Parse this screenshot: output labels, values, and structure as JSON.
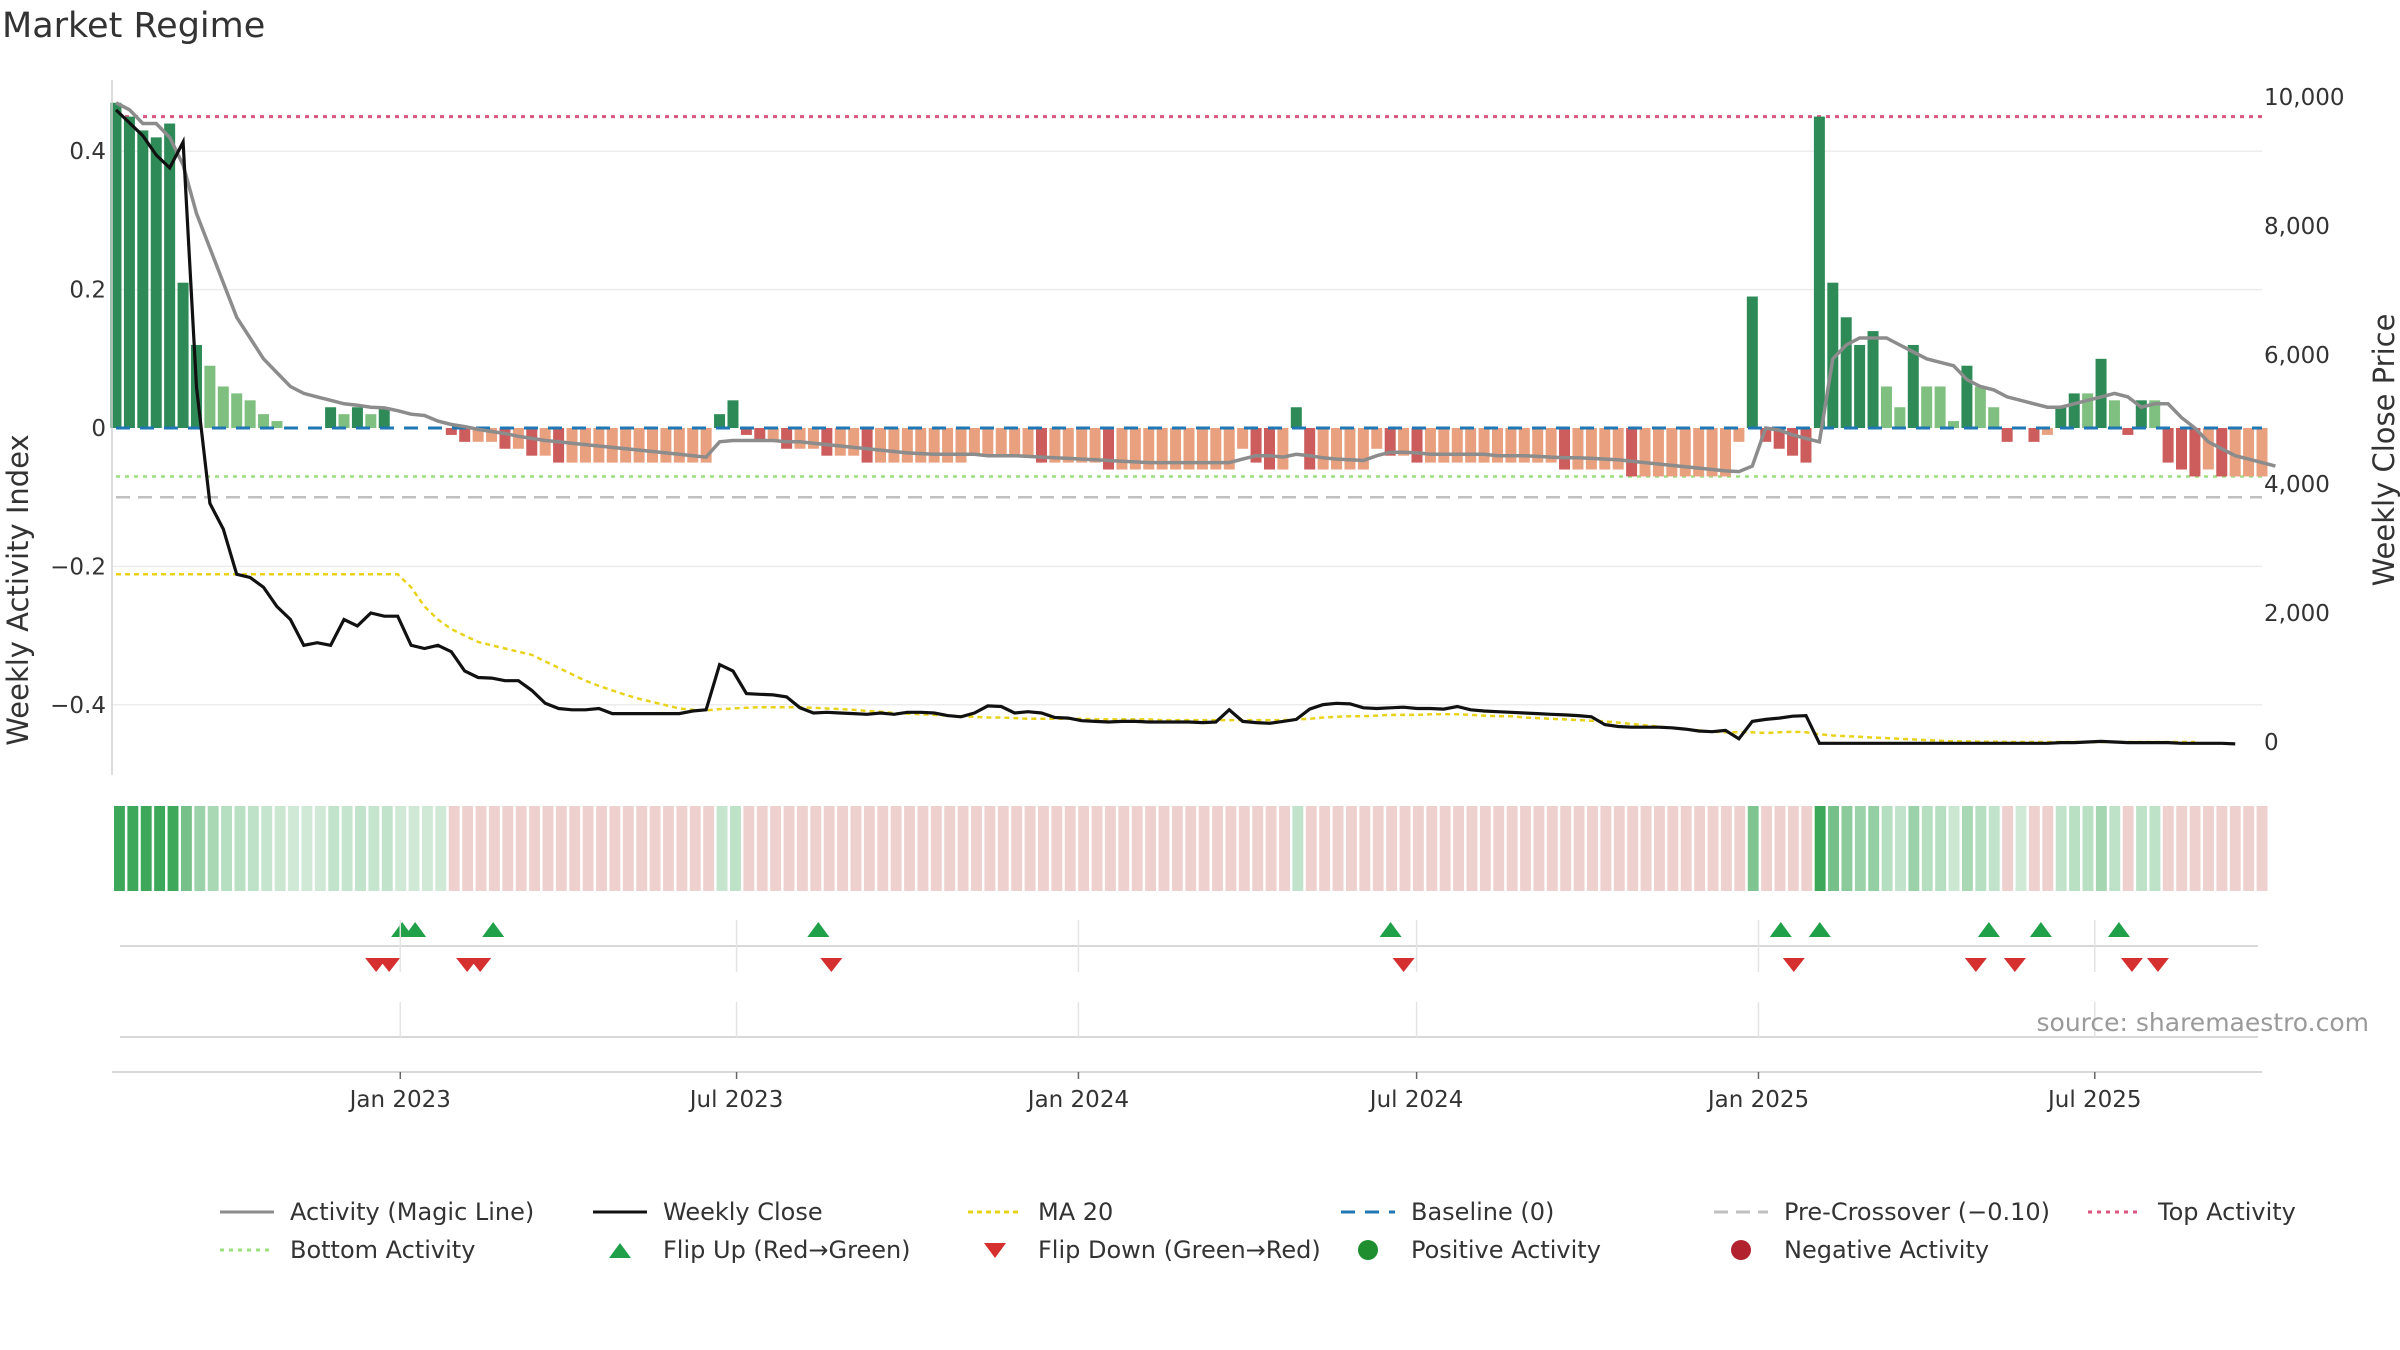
{
  "title": "Market Regime",
  "source": "source: sharemaestro.com",
  "colors": {
    "green_dark": "#2e8b57",
    "green_light": "#7fbf7f",
    "red_dark": "#cd5c5c",
    "red_light": "#e9a07f",
    "magic": "#8c8c8c",
    "close": "#111111",
    "ma": "#e8d31a",
    "baseline": "#1f77b4",
    "precross": "#c0c0c0",
    "top": "#d9577e",
    "bottom": "#9be07f",
    "flip_up": "#21a04a",
    "flip_down": "#d62f2f"
  },
  "legend": [
    {
      "key": "magic",
      "label": "Activity (Magic Line)"
    },
    {
      "key": "close",
      "label": "Weekly Close"
    },
    {
      "key": "ma",
      "label": "MA 20"
    },
    {
      "key": "baseline",
      "label": "Baseline (0)"
    },
    {
      "key": "precross",
      "label": "Pre-Crossover (−0.10)"
    },
    {
      "key": "top",
      "label": "Top Activity"
    },
    {
      "key": "bottom",
      "label": "Bottom Activity"
    },
    {
      "key": "flip_up",
      "label": "Flip Up (Red→Green)"
    },
    {
      "key": "flip_down",
      "label": "Flip Down (Green→Red)"
    },
    {
      "key": "pos",
      "label": "Positive Activity"
    },
    {
      "key": "neg",
      "label": "Negative Activity"
    }
  ],
  "chart_data": {
    "type": "bar",
    "x_start": "2022-08-01",
    "x_end": "2025-09-29",
    "x_freq": "weekly",
    "xticks": [
      "Jan 2023",
      "Jul 2023",
      "Jan 2024",
      "Jul 2024",
      "Jan 2025",
      "Jul 2025"
    ],
    "y_left_label": "Weekly Activity Index",
    "y_left_ticks": [
      "0.4",
      "0.2",
      "0",
      "−0.2",
      "−0.4"
    ],
    "y_left_lim": [
      -0.45,
      0.47
    ],
    "y_right_label": "Weekly Close Price",
    "y_right_ticks": [
      "10,000",
      "8,000",
      "6,000",
      "4,000",
      "2,000",
      "0"
    ],
    "y_right_lim": [
      0,
      10000
    ],
    "reference_lines": {
      "top_activity": 0.45,
      "bottom_activity": -0.07,
      "pre_crossover": -0.1,
      "baseline": 0
    },
    "activity": [
      0.47,
      0.45,
      0.43,
      0.42,
      0.44,
      0.21,
      0.12,
      0.09,
      0.06,
      0.05,
      0.04,
      0.02,
      0.01,
      0,
      0,
      0,
      0.03,
      0.02,
      0.03,
      0.02,
      0.03,
      0,
      0,
      0,
      0,
      -0.01,
      -0.02,
      -0.02,
      -0.02,
      -0.03,
      -0.03,
      -0.04,
      -0.04,
      -0.05,
      -0.05,
      -0.05,
      -0.05,
      -0.05,
      -0.05,
      -0.05,
      -0.05,
      -0.05,
      -0.05,
      -0.05,
      -0.05,
      0.02,
      0.04,
      -0.01,
      -0.02,
      -0.02,
      -0.03,
      -0.03,
      -0.03,
      -0.04,
      -0.04,
      -0.04,
      -0.05,
      -0.05,
      -0.05,
      -0.05,
      -0.05,
      -0.05,
      -0.05,
      -0.05,
      -0.04,
      -0.04,
      -0.04,
      -0.04,
      -0.04,
      -0.05,
      -0.05,
      -0.05,
      -0.05,
      -0.05,
      -0.06,
      -0.06,
      -0.06,
      -0.06,
      -0.06,
      -0.06,
      -0.06,
      -0.06,
      -0.06,
      -0.06,
      -0.03,
      -0.05,
      -0.06,
      -0.06,
      0.03,
      -0.06,
      -0.06,
      -0.06,
      -0.06,
      -0.06,
      -0.03,
      -0.04,
      -0.04,
      -0.05,
      -0.05,
      -0.05,
      -0.05,
      -0.05,
      -0.05,
      -0.05,
      -0.05,
      -0.05,
      -0.05,
      -0.05,
      -0.06,
      -0.06,
      -0.06,
      -0.06,
      -0.06,
      -0.07,
      -0.07,
      -0.07,
      -0.07,
      -0.07,
      -0.07,
      -0.07,
      -0.07,
      -0.02,
      0.19,
      -0.02,
      -0.03,
      -0.04,
      -0.05,
      0.45,
      0.21,
      0.16,
      0.12,
      0.14,
      0.06,
      0.03,
      0.12,
      0.06,
      0.06,
      0.01,
      0.09,
      0.06,
      0.03,
      -0.02,
      0,
      -0.02,
      -0.01,
      0.03,
      0.05,
      0.05,
      0.1,
      0.04,
      -0.01,
      0.04,
      0.04,
      -0.05,
      -0.06,
      -0.07,
      -0.06,
      -0.07,
      -0.07,
      -0.07,
      -0.07
    ],
    "magic_line": [
      0.47,
      0.46,
      0.44,
      0.44,
      0.42,
      0.38,
      0.31,
      0.26,
      0.21,
      0.16,
      0.13,
      0.1,
      0.08,
      0.06,
      0.05,
      0.045,
      0.04,
      0.035,
      0.033,
      0.03,
      0.029,
      0.025,
      0.02,
      0.018,
      0.01,
      0.005,
      0.002,
      -0.002,
      -0.005,
      -0.008,
      -0.012,
      -0.015,
      -0.018,
      -0.02,
      -0.022,
      -0.024,
      -0.026,
      -0.028,
      -0.03,
      -0.032,
      -0.034,
      -0.036,
      -0.038,
      -0.04,
      -0.042,
      -0.02,
      -0.018,
      -0.018,
      -0.018,
      -0.018,
      -0.02,
      -0.02,
      -0.022,
      -0.024,
      -0.026,
      -0.028,
      -0.03,
      -0.032,
      -0.034,
      -0.036,
      -0.037,
      -0.038,
      -0.038,
      -0.038,
      -0.038,
      -0.04,
      -0.04,
      -0.04,
      -0.041,
      -0.042,
      -0.043,
      -0.044,
      -0.045,
      -0.046,
      -0.047,
      -0.048,
      -0.049,
      -0.05,
      -0.05,
      -0.05,
      -0.05,
      -0.05,
      -0.05,
      -0.05,
      -0.045,
      -0.04,
      -0.04,
      -0.042,
      -0.038,
      -0.04,
      -0.043,
      -0.045,
      -0.046,
      -0.047,
      -0.04,
      -0.035,
      -0.035,
      -0.036,
      -0.038,
      -0.038,
      -0.038,
      -0.038,
      -0.038,
      -0.04,
      -0.04,
      -0.04,
      -0.041,
      -0.042,
      -0.043,
      -0.043,
      -0.044,
      -0.045,
      -0.046,
      -0.048,
      -0.05,
      -0.052,
      -0.054,
      -0.056,
      -0.058,
      -0.06,
      -0.062,
      -0.063,
      -0.055,
      0.0,
      -0.003,
      -0.01,
      -0.015,
      -0.02,
      0.1,
      0.12,
      0.13,
      0.13,
      0.13,
      0.12,
      0.11,
      0.1,
      0.095,
      0.09,
      0.07,
      0.06,
      0.055,
      0.045,
      0.04,
      0.035,
      0.03,
      0.03,
      0.035,
      0.04,
      0.045,
      0.05,
      0.045,
      0.03,
      0.035,
      0.035,
      0.015,
      0.0,
      -0.02,
      -0.03,
      -0.04,
      -0.045,
      -0.05,
      -0.055
    ],
    "weekly_close": [
      9800,
      9600,
      9400,
      9100,
      8900,
      9300,
      5500,
      3700,
      3300,
      2600,
      2550,
      2400,
      2100,
      1900,
      1500,
      1540,
      1500,
      1900,
      1800,
      2000,
      1950,
      1950,
      1500,
      1450,
      1500,
      1400,
      1100,
      1000,
      990,
      950,
      950,
      800,
      600,
      520,
      500,
      500,
      520,
      440,
      440,
      440,
      440,
      440,
      440,
      480,
      500,
      1200,
      1100,
      750,
      740,
      730,
      700,
      530,
      450,
      460,
      450,
      440,
      430,
      450,
      430,
      460,
      460,
      450,
      410,
      390,
      450,
      560,
      550,
      450,
      470,
      450,
      380,
      370,
      330,
      320,
      310,
      320,
      320,
      310,
      310,
      310,
      310,
      300,
      310,
      500,
      320,
      300,
      290,
      320,
      350,
      510,
      580,
      600,
      590,
      530,
      520,
      530,
      540,
      520,
      520,
      510,
      550,
      500,
      480,
      470,
      460,
      450,
      440,
      430,
      420,
      410,
      390,
      270,
      240,
      230,
      230,
      230,
      220,
      200,
      170,
      160,
      180,
      50,
      320,
      350,
      370,
      400,
      410,
      -20,
      -20,
      -20,
      -20,
      -20,
      -20,
      -20,
      -20,
      -20,
      -20,
      -20,
      -20,
      -20,
      -20,
      -20,
      -20,
      -20,
      -20,
      -10,
      -10,
      0,
      10,
      0,
      -10,
      -10,
      -10,
      -10,
      -20,
      -20,
      -20,
      -20,
      -30
    ],
    "ma20": [
      2600,
      2600,
      2600,
      2600,
      2600,
      2600,
      2600,
      2600,
      2600,
      2600,
      2600,
      2600,
      2600,
      2600,
      2600,
      2600,
      2600,
      2600,
      2600,
      2600,
      2600,
      2600,
      2400,
      2100,
      1900,
      1750,
      1650,
      1550,
      1500,
      1450,
      1400,
      1350,
      1250,
      1150,
      1050,
      950,
      870,
      800,
      730,
      670,
      620,
      570,
      520,
      500,
      490,
      510,
      520,
      530,
      540,
      540,
      540,
      540,
      530,
      520,
      510,
      500,
      480,
      470,
      450,
      440,
      430,
      420,
      410,
      400,
      390,
      380,
      380,
      370,
      360,
      360,
      360,
      360,
      360,
      350,
      350,
      350,
      350,
      350,
      340,
      340,
      340,
      340,
      340,
      340,
      340,
      340,
      340,
      340,
      350,
      360,
      380,
      390,
      400,
      400,
      410,
      420,
      420,
      420,
      430,
      430,
      430,
      420,
      410,
      400,
      400,
      380,
      370,
      360,
      350,
      340,
      330,
      320,
      300,
      280,
      260,
      240,
      220,
      200,
      180,
      160,
      150,
      150,
      150,
      140,
      150,
      160,
      150,
      120,
      100,
      90,
      80,
      70,
      60,
      50,
      40,
      30,
      20,
      10,
      10,
      5,
      5,
      0,
      0,
      0,
      0,
      0,
      0,
      0,
      0,
      0,
      0,
      0,
      0,
      0,
      0,
      0
    ],
    "flips": {
      "up": [
        "2023-01-02",
        "2023-01-09",
        "2023-02-20",
        "2023-08-14",
        "2024-06-17",
        "2025-01-13",
        "2025-02-03",
        "2025-05-05",
        "2025-06-02",
        "2025-07-14"
      ],
      "down": [
        "2022-12-19",
        "2022-12-26",
        "2023-02-06",
        "2023-02-13",
        "2023-08-21",
        "2024-06-24",
        "2025-01-20",
        "2025-04-28",
        "2025-05-19",
        "2025-07-21",
        "2025-08-04"
      ]
    }
  }
}
